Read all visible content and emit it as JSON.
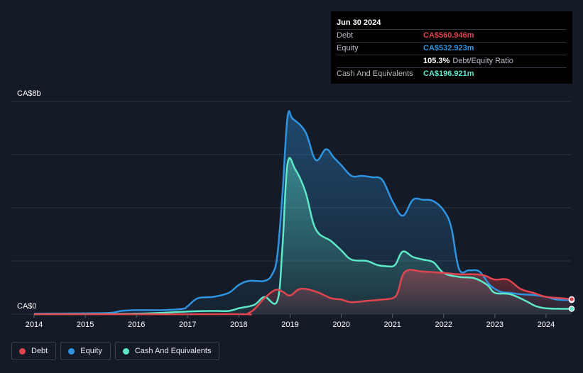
{
  "colors": {
    "debt": "#e0444e",
    "equity": "#2f93e0",
    "cash": "#5ee8c8",
    "grid": "#2c3340",
    "axis_text": "#ffffff"
  },
  "tooltip": {
    "date": "Jun 30 2024",
    "rows": [
      {
        "label": "Debt",
        "value": "CA$560.946m",
        "color": "#e0444e"
      },
      {
        "label": "Equity",
        "value": "CA$532.923m",
        "color": "#2f93e0"
      },
      {
        "label": "",
        "value": "105.3%",
        "sub": "Debt/Equity Ratio",
        "color": "#ffffff"
      },
      {
        "label": "Cash And Equivalents",
        "value": "CA$196.921m",
        "color": "#5ee8c8"
      }
    ]
  },
  "legend": [
    {
      "label": "Debt",
      "color": "#e0444e"
    },
    {
      "label": "Equity",
      "color": "#2f93e0"
    },
    {
      "label": "Cash And Equivalents",
      "color": "#5ee8c8"
    }
  ],
  "chart_data": {
    "type": "area",
    "y_top_label": "CA$8b",
    "y_bottom_label": "CA$0",
    "ylim": [
      0,
      8
    ],
    "xlim": [
      2014.0,
      2024.5
    ],
    "x_ticks": [
      "2014",
      "2015",
      "2016",
      "2017",
      "2018",
      "2019",
      "2020",
      "2021",
      "2022",
      "2023",
      "2024"
    ],
    "grid": true,
    "series": [
      {
        "name": "Debt",
        "key": "debt",
        "points": [
          [
            2014,
            0
          ],
          [
            2017.8,
            0
          ],
          [
            2018.2,
            0.05
          ],
          [
            2018.5,
            0.6
          ],
          [
            2018.7,
            0.9
          ],
          [
            2018.85,
            0.85
          ],
          [
            2019.0,
            0.7
          ],
          [
            2019.2,
            0.95
          ],
          [
            2019.5,
            0.85
          ],
          [
            2019.8,
            0.6
          ],
          [
            2020.0,
            0.55
          ],
          [
            2020.2,
            0.45
          ],
          [
            2020.5,
            0.5
          ],
          [
            2020.8,
            0.55
          ],
          [
            2021.0,
            0.6
          ],
          [
            2021.1,
            0.8
          ],
          [
            2021.25,
            1.6
          ],
          [
            2021.6,
            1.6
          ],
          [
            2022.0,
            1.55
          ],
          [
            2022.3,
            1.5
          ],
          [
            2022.6,
            1.5
          ],
          [
            2022.8,
            1.45
          ],
          [
            2023.0,
            1.3
          ],
          [
            2023.25,
            1.3
          ],
          [
            2023.5,
            0.95
          ],
          [
            2023.75,
            0.8
          ],
          [
            2024.0,
            0.65
          ],
          [
            2024.3,
            0.6
          ],
          [
            2024.5,
            0.56
          ]
        ]
      },
      {
        "name": "Equity",
        "key": "equity",
        "points": [
          [
            2014,
            0.02
          ],
          [
            2015,
            0.03
          ],
          [
            2015.5,
            0.05
          ],
          [
            2015.7,
            0.12
          ],
          [
            2016,
            0.15
          ],
          [
            2016.5,
            0.15
          ],
          [
            2016.9,
            0.2
          ],
          [
            2017.0,
            0.3
          ],
          [
            2017.2,
            0.6
          ],
          [
            2017.5,
            0.65
          ],
          [
            2017.8,
            0.8
          ],
          [
            2018.0,
            1.1
          ],
          [
            2018.2,
            1.25
          ],
          [
            2018.5,
            1.25
          ],
          [
            2018.65,
            1.5
          ],
          [
            2018.75,
            2.2
          ],
          [
            2018.85,
            4.5
          ],
          [
            2018.95,
            7.4
          ],
          [
            2019.05,
            7.35
          ],
          [
            2019.3,
            6.85
          ],
          [
            2019.5,
            5.8
          ],
          [
            2019.7,
            6.2
          ],
          [
            2019.85,
            5.9
          ],
          [
            2020.0,
            5.6
          ],
          [
            2020.2,
            5.2
          ],
          [
            2020.4,
            5.2
          ],
          [
            2020.6,
            5.15
          ],
          [
            2020.8,
            5.05
          ],
          [
            2021.0,
            4.25
          ],
          [
            2021.2,
            3.7
          ],
          [
            2021.4,
            4.3
          ],
          [
            2021.6,
            4.3
          ],
          [
            2021.8,
            4.25
          ],
          [
            2022.0,
            3.9
          ],
          [
            2022.15,
            3.25
          ],
          [
            2022.3,
            1.7
          ],
          [
            2022.5,
            1.65
          ],
          [
            2022.7,
            1.6
          ],
          [
            2022.9,
            1.1
          ],
          [
            2023.1,
            0.85
          ],
          [
            2023.3,
            0.8
          ],
          [
            2023.5,
            0.75
          ],
          [
            2023.75,
            0.72
          ],
          [
            2024.0,
            0.65
          ],
          [
            2024.2,
            0.55
          ],
          [
            2024.5,
            0.53
          ]
        ]
      },
      {
        "name": "Cash And Equivalents",
        "key": "cash",
        "points": [
          [
            2014,
            0
          ],
          [
            2016,
            0.02
          ],
          [
            2017.0,
            0.1
          ],
          [
            2017.5,
            0.12
          ],
          [
            2017.8,
            0.12
          ],
          [
            2018.0,
            0.22
          ],
          [
            2018.3,
            0.35
          ],
          [
            2018.5,
            0.65
          ],
          [
            2018.75,
            0.5
          ],
          [
            2018.85,
            2.5
          ],
          [
            2018.95,
            5.65
          ],
          [
            2019.1,
            5.45
          ],
          [
            2019.3,
            4.6
          ],
          [
            2019.5,
            3.2
          ],
          [
            2019.8,
            2.75
          ],
          [
            2020.0,
            2.4
          ],
          [
            2020.2,
            2.05
          ],
          [
            2020.5,
            2.0
          ],
          [
            2020.7,
            1.85
          ],
          [
            2020.9,
            1.8
          ],
          [
            2021.05,
            1.85
          ],
          [
            2021.2,
            2.35
          ],
          [
            2021.4,
            2.15
          ],
          [
            2021.6,
            2.05
          ],
          [
            2021.8,
            1.95
          ],
          [
            2022.0,
            1.55
          ],
          [
            2022.3,
            1.4
          ],
          [
            2022.6,
            1.35
          ],
          [
            2022.85,
            1.1
          ],
          [
            2023.0,
            0.8
          ],
          [
            2023.3,
            0.75
          ],
          [
            2023.6,
            0.5
          ],
          [
            2023.8,
            0.3
          ],
          [
            2024.0,
            0.22
          ],
          [
            2024.3,
            0.2
          ],
          [
            2024.5,
            0.2
          ]
        ]
      }
    ]
  }
}
